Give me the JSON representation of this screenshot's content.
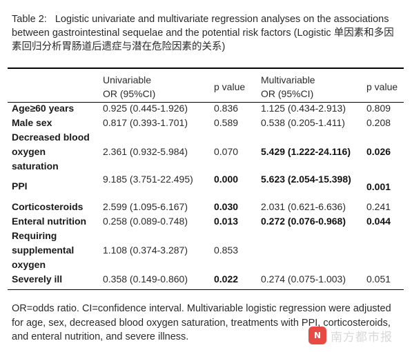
{
  "caption": "Table 2:   Logistic univariate and multivariate regression analyses on the associations between gastrointestinal sequelae and the potential risk factors (Logistic 单因素和多因素回归分析胃肠道后遗症与潜在危险因素的关系)",
  "headers": {
    "univariable_line1": "Univariable",
    "univariable_line2": "OR (95%CI)",
    "p_value_1": "p value",
    "multivariable_line1": "Multivariable",
    "multivariable_line2": "OR (95%CI)",
    "p_value_2": "p value"
  },
  "rows": [
    {
      "label": [
        "Age≥60 years"
      ],
      "uni_or": "0.925 (0.445-1.926)",
      "uni_p": "0.836",
      "multi_or": "1.125 (0.434-2.913)",
      "multi_p": "0.809"
    },
    {
      "label": [
        "Male sex"
      ],
      "uni_or": "0.817 (0.393-1.701)",
      "uni_p": "0.589",
      "multi_or": "0.538 (0.205-1.411)",
      "multi_p": "0.208"
    },
    {
      "label": [
        "Decreased blood",
        "oxygen",
        "saturation"
      ],
      "uni_or": "2.361 (0.932-5.984)",
      "uni_p": "0.070",
      "multi_or": "5.429 (1.222-24.116)",
      "multi_p": "0.026"
    },
    {
      "label": [
        "PPI"
      ],
      "uni_or": "9.185 (3.751-22.495)",
      "uni_p": "0.000",
      "multi_or": "5.623 (2.054-15.398)",
      "multi_p": "0.001"
    },
    {
      "label": [
        "Corticosteroids"
      ],
      "uni_or": "2.599 (1.095-6.167)",
      "uni_p": "0.030",
      "multi_or": "2.031 (0.621-6.636)",
      "multi_p": "0.241"
    },
    {
      "label": [
        "Enteral nutrition"
      ],
      "uni_or": "0.258 (0.089-0.748)",
      "uni_p": "0.013",
      "multi_or": "0.272 (0.076-0.968)",
      "multi_p": "0.044"
    },
    {
      "label": [
        "Requiring",
        "supplemental",
        "oxygen"
      ],
      "uni_or": "1.108 (0.374-3.287)",
      "uni_p": "0.853",
      "multi_or": "",
      "multi_p": ""
    },
    {
      "label": [
        "Severely ill"
      ],
      "uni_or": "0.358 (0.149-0.860)",
      "uni_p": "0.022",
      "multi_or": "0.274 (0.075-1.003)",
      "multi_p": "0.051"
    }
  ],
  "footnote": "OR=odds ratio. CI=confidence interval. Multivariable logistic regression were adjusted for age, sex, decreased blood oxygen saturation, treatments with PPI, corticosteroids, and enteral nutrition, and severe illness.",
  "watermark": {
    "logo_text": "N",
    "text": "南方都市报",
    "logo_color": "#e2231a"
  }
}
